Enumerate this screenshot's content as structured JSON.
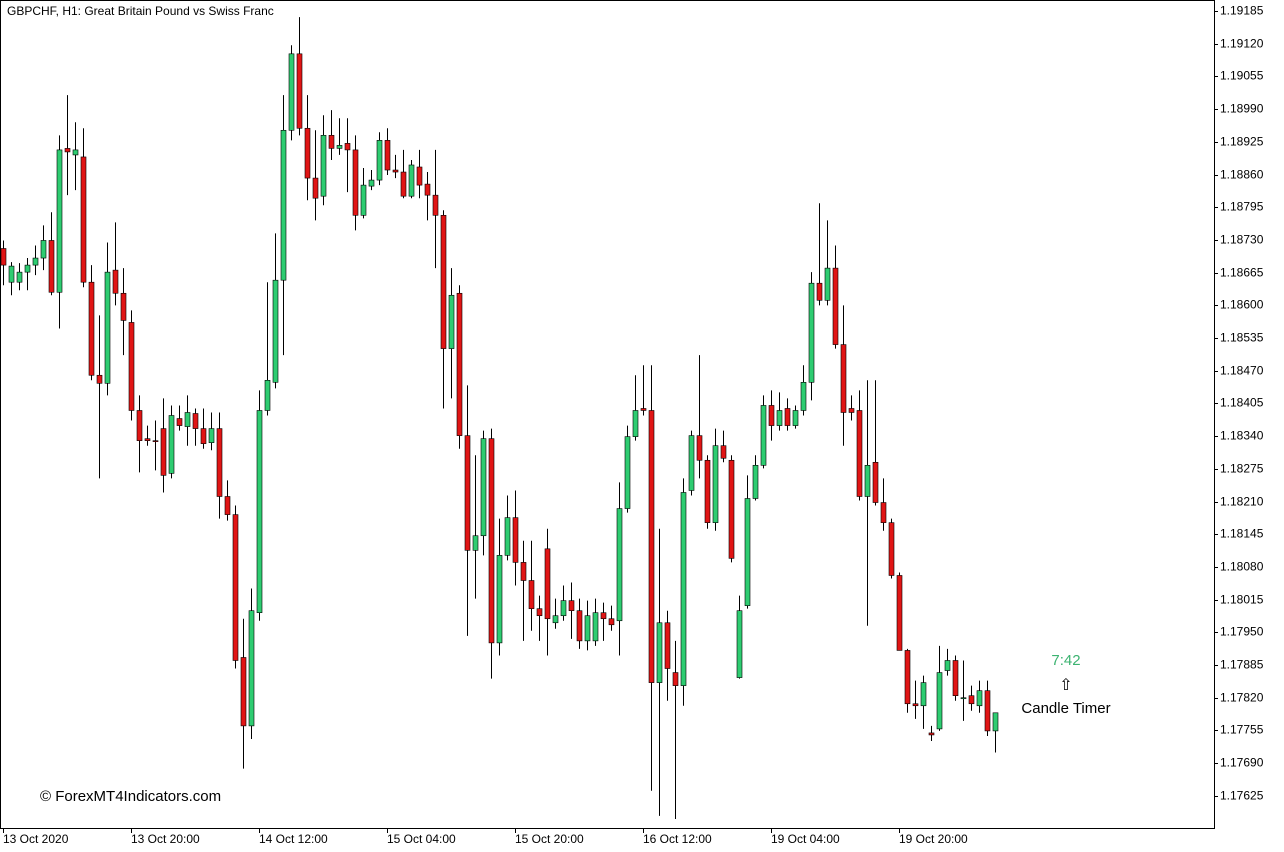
{
  "chart_data": {
    "type": "candlestick",
    "title": "GBPCHF, H1:  Great Britain Pound vs Swiss Franc",
    "annotations": {
      "timer": "7:42",
      "timer_arrow": "⇧",
      "timer_label": "Candle Timer",
      "watermark": "© ForexMT4Indicators.com"
    },
    "up_color": "#2ecc71",
    "down_color": "#e01515",
    "wick_color": "#000000",
    "categories": [
      "13 Oct 2020",
      null,
      null,
      null,
      null,
      null,
      null,
      null,
      null,
      null,
      null,
      null,
      null,
      null,
      null,
      null,
      "13 Oct 20:00",
      null,
      null,
      null,
      null,
      null,
      null,
      null,
      null,
      null,
      null,
      null,
      null,
      null,
      null,
      null,
      "14 Oct 12:00",
      null,
      null,
      null,
      null,
      null,
      null,
      null,
      null,
      null,
      null,
      null,
      null,
      null,
      null,
      null,
      "15 Oct 04:00",
      null,
      null,
      null,
      null,
      null,
      null,
      null,
      null,
      null,
      null,
      null,
      null,
      null,
      null,
      null,
      "15 Oct 20:00",
      null,
      null,
      null,
      null,
      null,
      null,
      null,
      null,
      null,
      null,
      null,
      null,
      null,
      null,
      null,
      "16 Oct 12:00",
      null,
      null,
      null,
      null,
      null,
      null,
      null,
      null,
      null,
      null,
      null,
      null,
      null,
      null,
      null,
      "19 Oct 04:00",
      null,
      null,
      null,
      null,
      null,
      null,
      null,
      null,
      null,
      null,
      null,
      null,
      null,
      null,
      null,
      "19 Oct 20:00",
      null,
      null,
      null,
      null,
      null,
      null,
      null,
      null,
      null,
      null,
      null,
      null
    ],
    "open": [
      1.18713,
      1.18646,
      1.18646,
      1.18666,
      1.1868,
      1.18694,
      1.18729,
      1.18626,
      1.18912,
      1.18899,
      1.18895,
      1.18646,
      1.18461,
      1.18445,
      1.1867,
      1.18624,
      1.18566,
      1.18391,
      1.18335,
      1.18331,
      1.18355,
      1.18266,
      1.18375,
      1.18359,
      1.18385,
      1.18355,
      1.18327,
      1.18355,
      1.1822,
      1.18184,
      1.179,
      1.17764,
      1.17989,
      1.18391,
      1.18447,
      1.1865,
      1.18948,
      1.191,
      1.18952,
      1.18853,
      1.18817,
      1.18938,
      1.18912,
      1.18922,
      1.18909,
      1.18779,
      1.18837,
      1.18849,
      1.18928,
      1.18869,
      1.18865,
      1.18817,
      1.18875,
      1.18841,
      1.18819,
      1.18779,
      1.18514,
      1.18624,
      1.18341,
      1.18113,
      1.18142,
      1.18335,
      1.17929,
      1.18103,
      1.18178,
      1.18089,
      1.18053,
      1.17997,
      1.18116,
      1.17969,
      1.17983,
      1.18013,
      1.17993,
      1.17933,
      1.17933,
      1.17989,
      1.17977,
      1.17973,
      1.18196,
      1.18339,
      1.18395,
      1.18391,
      1.1785,
      1.17969,
      1.1787,
      1.17844,
      1.18232,
      1.18341,
      1.18292,
      1.18168,
      1.18321,
      1.18292,
      1.1786,
      1.18003,
      1.18216,
      1.18282,
      1.18401,
      1.18361,
      1.18395,
      1.18361,
      1.18391,
      1.18447,
      1.18644,
      1.1861,
      1.18674,
      1.18522,
      1.18395,
      1.18391,
      1.1822,
      1.18288,
      1.18208,
      1.18168,
      1.18063,
      1.17914,
      1.17808,
      1.17804,
      1.1775,
      1.17758,
      1.17874,
      1.17894,
      1.17818,
      1.17824,
      1.17804,
      1.17834,
      1.17754
    ],
    "high": [
      1.18729,
      1.18686,
      1.18684,
      1.18694,
      1.18719,
      1.18759,
      1.18785,
      1.18938,
      1.19018,
      1.18964,
      1.18952,
      1.1868,
      1.1858,
      1.18725,
      1.18765,
      1.18674,
      1.1859,
      1.18421,
      1.18361,
      1.18371,
      1.18415,
      1.18401,
      1.18401,
      1.18421,
      1.18395,
      1.18395,
      1.18387,
      1.18387,
      1.18252,
      1.18202,
      1.17977,
      1.18037,
      1.18431,
      1.18646,
      1.18743,
      1.19018,
      1.19117,
      1.19173,
      1.19018,
      1.18948,
      1.18978,
      1.18988,
      1.18972,
      1.18972,
      1.18938,
      1.18873,
      1.18869,
      1.18944,
      1.18952,
      1.18899,
      1.18909,
      1.18889,
      1.18909,
      1.18865,
      1.18909,
      1.18789,
      1.18674,
      1.1864,
      1.18441,
      1.18302,
      1.18351,
      1.18355,
      1.18176,
      1.18222,
      1.18232,
      1.18132,
      1.18132,
      1.18023,
      1.18156,
      1.18017,
      1.18043,
      1.18049,
      1.18017,
      1.18013,
      1.18017,
      1.18009,
      1.18003,
      1.18248,
      1.18361,
      1.18461,
      1.18481,
      1.18481,
      1.18156,
      1.17993,
      1.17933,
      1.18256,
      1.18351,
      1.18501,
      1.18302,
      1.18355,
      1.18351,
      1.18302,
      1.18023,
      1.18262,
      1.18302,
      1.18421,
      1.18431,
      1.18427,
      1.18415,
      1.18401,
      1.18481,
      1.18666,
      1.18803,
      1.18769,
      1.18719,
      1.186,
      1.18421,
      1.18431,
      1.18451,
      1.18451,
      1.18256,
      1.18176,
      1.18069,
      1.17917,
      1.17854,
      1.17864,
      1.17764,
      1.17923,
      1.17917,
      1.17904,
      1.17894,
      1.17844,
      1.17854,
      1.17854,
      1.1779
    ],
    "low": [
      1.1864,
      1.1862,
      1.1863,
      1.1863,
      1.1866,
      1.1867,
      1.1862,
      1.18554,
      1.18819,
      1.18829,
      1.18636,
      1.18451,
      1.18256,
      1.18421,
      1.186,
      1.18501,
      1.18371,
      1.18268,
      1.18321,
      1.18272,
      1.18228,
      1.18256,
      1.18351,
      1.18321,
      1.18321,
      1.18315,
      1.18312,
      1.18176,
      1.18172,
      1.17878,
      1.17679,
      1.17738,
      1.17973,
      1.18381,
      1.18435,
      1.18501,
      1.18928,
      1.18938,
      1.18809,
      1.18769,
      1.18799,
      1.18889,
      1.18899,
      1.18825,
      1.18749,
      1.18773,
      1.18829,
      1.18839,
      1.18859,
      1.18853,
      1.18813,
      1.18813,
      1.18813,
      1.18769,
      1.18674,
      1.18395,
      1.18415,
      1.18315,
      1.17943,
      1.18017,
      1.18103,
      1.17858,
      1.17904,
      1.18093,
      1.18043,
      1.17933,
      1.17953,
      1.17933,
      1.17904,
      1.17957,
      1.17973,
      1.17937,
      1.17917,
      1.17914,
      1.17923,
      1.17933,
      1.17953,
      1.17904,
      1.18188,
      1.18331,
      1.18381,
      1.17635,
      1.17585,
      1.17814,
      1.17579,
      1.17804,
      1.18222,
      1.18256,
      1.18156,
      1.18152,
      1.18288,
      1.18089,
      1.17858,
      1.17997,
      1.18212,
      1.18276,
      1.18331,
      1.18351,
      1.18351,
      1.18355,
      1.18381,
      1.18411,
      1.186,
      1.186,
      1.18514,
      1.18321,
      1.18371,
      1.18212,
      1.17963,
      1.18202,
      1.18152,
      1.18057,
      1.17914,
      1.1779,
      1.17778,
      1.17758,
      1.17734,
      1.17754,
      1.17864,
      1.17814,
      1.17774,
      1.17794,
      1.1779,
      1.17744,
      1.17711
    ],
    "close": [
      1.1868,
      1.18678,
      1.18666,
      1.1868,
      1.18694,
      1.18729,
      1.18626,
      1.18909,
      1.18905,
      1.18909,
      1.18646,
      1.18461,
      1.18445,
      1.18666,
      1.18624,
      1.1857,
      1.18391,
      1.18331,
      1.18331,
      1.18329,
      1.18262,
      1.18381,
      1.18361,
      1.18387,
      1.18355,
      1.18325,
      1.18355,
      1.1822,
      1.18184,
      1.17894,
      1.17764,
      1.17993,
      1.18391,
      1.18451,
      1.1865,
      1.18948,
      1.191,
      1.18952,
      1.18853,
      1.18813,
      1.18938,
      1.18912,
      1.18918,
      1.18909,
      1.18779,
      1.18839,
      1.18849,
      1.18928,
      1.18869,
      1.18865,
      1.18817,
      1.18879,
      1.18839,
      1.18819,
      1.18779,
      1.18514,
      1.1862,
      1.18341,
      1.18113,
      1.18142,
      1.18335,
      1.17929,
      1.18103,
      1.18178,
      1.18089,
      1.18053,
      1.17997,
      1.17983,
      1.17977,
      1.17983,
      1.18013,
      1.17993,
      1.17933,
      1.17983,
      1.17989,
      1.17977,
      1.17965,
      1.18196,
      1.18339,
      1.18391,
      1.18391,
      1.1785,
      1.17969,
      1.17878,
      1.17844,
      1.18228,
      1.18341,
      1.18292,
      1.18168,
      1.18321,
      1.18296,
      1.18097,
      1.17993,
      1.18216,
      1.18282,
      1.18401,
      1.18361,
      1.18391,
      1.18361,
      1.18391,
      1.18447,
      1.18644,
      1.1861,
      1.18674,
      1.18522,
      1.18387,
      1.18387,
      1.1822,
      1.18282,
      1.18208,
      1.18168,
      1.18063,
      1.17914,
      1.17808,
      1.17804,
      1.1785,
      1.17746,
      1.1787,
      1.17894,
      1.17824,
      1.1782,
      1.17808,
      1.17834,
      1.17754,
      1.1779
    ],
    "ylim": [
      1.17561,
      1.19207
    ],
    "yticks": [
      1.19185,
      {
        "value": 1.1912,
        "label": "1.19120"
      },
      1.19055,
      {
        "value": 1.1899,
        "label": "1.18990"
      },
      1.18925,
      {
        "value": 1.1886,
        "label": "1.18860"
      },
      1.18795,
      {
        "value": 1.1873,
        "label": "1.18730"
      },
      1.18665,
      {
        "value": 1.186,
        "label": "1.18600"
      },
      1.18535,
      {
        "value": 1.1847,
        "label": "1.18470"
      },
      1.18405,
      {
        "value": 1.1834,
        "label": "1.18340"
      },
      1.18275,
      {
        "value": 1.1821,
        "label": "1.18210"
      },
      1.18145,
      {
        "value": 1.1808,
        "label": "1.18080"
      },
      1.18015,
      {
        "value": 1.1795,
        "label": "1.17950"
      },
      1.17885,
      {
        "value": 1.1782,
        "label": "1.17820"
      },
      1.17755,
      {
        "value": 1.1769,
        "label": "1.17690"
      },
      1.17625
    ]
  }
}
